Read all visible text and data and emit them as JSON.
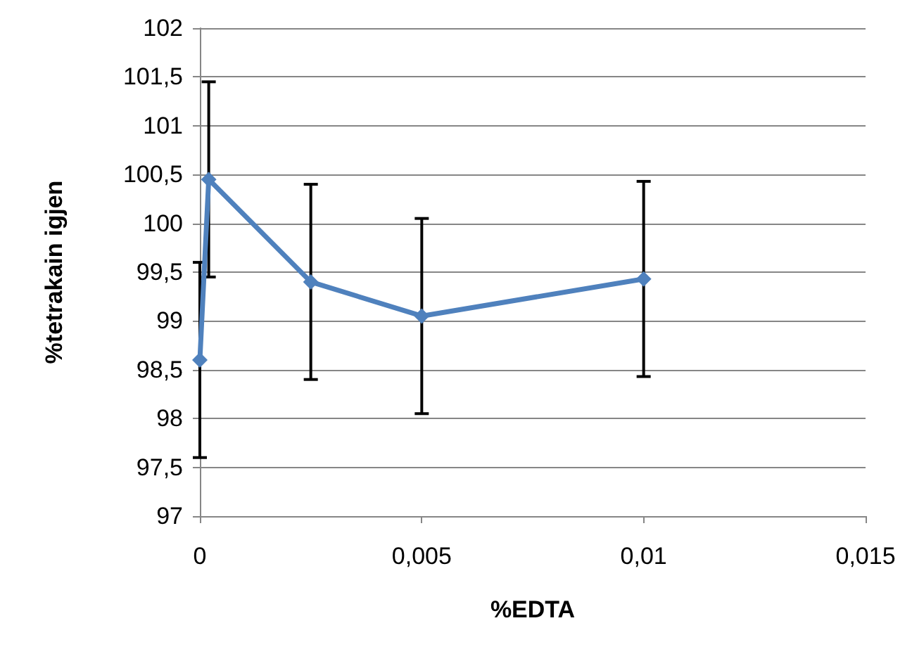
{
  "chart_data": {
    "type": "line",
    "xlabel": "%EDTA",
    "ylabel": "%tetrakain igjen",
    "x": [
      0,
      0.0002,
      0.0025,
      0.005,
      0.01
    ],
    "series": [
      {
        "color": "#4f81bd",
        "values": [
          98.6,
          100.45,
          99.4,
          99.05,
          99.43
        ],
        "errors": [
          1,
          1,
          1,
          1,
          1
        ]
      }
    ],
    "xlim": [
      0,
      0.015
    ],
    "xticks": [
      {
        "value": 0,
        "label": "0"
      },
      {
        "value": 0.005,
        "label": "0,005"
      },
      {
        "value": 0.01,
        "label": "0,01"
      },
      {
        "value": 0.015,
        "label": "0,015"
      }
    ],
    "ylim": [
      97,
      102
    ],
    "yticks": [
      {
        "value": 97,
        "label": "97"
      },
      {
        "value": 97.5,
        "label": "97,5"
      },
      {
        "value": 98,
        "label": "98"
      },
      {
        "value": 98.5,
        "label": "98,5"
      },
      {
        "value": 99,
        "label": "99"
      },
      {
        "value": 99.5,
        "label": "99,5"
      },
      {
        "value": 100,
        "label": "100"
      },
      {
        "value": 100.5,
        "label": "100,5"
      },
      {
        "value": 101,
        "label": "101"
      },
      {
        "value": 101.5,
        "label": "101,5"
      },
      {
        "value": 102,
        "label": "102"
      }
    ],
    "grid": "y",
    "marker": "diamond",
    "line_style": "solid"
  }
}
